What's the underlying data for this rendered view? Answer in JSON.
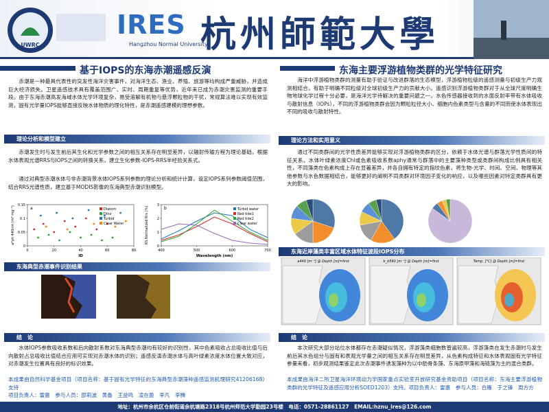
{
  "header": {
    "logo_text": "UWRC",
    "ires": "IRES",
    "ires_sub": "Hangzhou Normal University",
    "university": "杭州師範大學"
  },
  "left": {
    "title": "基于IOPS的东海赤潮遥感反演",
    "intro": "赤潮是一种最具代表性的突发性海洋灾害事件，对海洋生态、渔业、养殖、旅游等均构成严重威胁，并造成巨大经济损失。卫星遥感技术具有覆盖范围广、实时、周期重复等优势，近年来已成为赤潮灾害监测的重要手段。由于东海赤潮高发海域水体光学环境复杂，易受溶解有机物与悬浮颗粒物的干扰，常规算法难以实现有效监测，固有光学量IOPS能够直接反映水体物质的理化特性，是赤潮遥感建模的理想参数。",
    "theory_heading": "理论分析和模型建立",
    "theory_p1": "赤潮发生时与发生前后其生化和光学参数之间的相互关系存在明显差异，以辐射传输方程为理论基础，根据水体表观光谱RRS与IOPS之间的转换关系，建立生化参数-IOPS-RRS半经验关系式。",
    "theory_p2": "通过对典型赤潮水体与非赤潮背景水体IOPS系列参数的理论分析和统计计算，设定IOPS系列参数阈值范围，结合RRS光谱性质，建立基于MODIS影像的东海典型赤潮识别模型。",
    "plot_a": {
      "type": "scatter",
      "label": "a",
      "xlabel": "ID",
      "ylabel": "a*ph 440nm (m² mg⁻¹)",
      "xlim": [
        0,
        80
      ],
      "ylim": [
        0,
        0.15
      ],
      "xticks": [
        0,
        20,
        40,
        60,
        80
      ],
      "yticks": [
        0,
        0.05,
        0.1,
        0.15
      ],
      "series": [
        {
          "name": "Diatom",
          "color": "#d62728",
          "x": [
            5,
            12,
            20,
            28,
            36,
            44,
            52,
            60
          ],
          "y": [
            0.06,
            0.08,
            0.05,
            0.09,
            0.07,
            0.1,
            0.06,
            0.08
          ]
        },
        {
          "name": "Dino",
          "color": "#2ca02c",
          "x": [
            8,
            16,
            24,
            32,
            40,
            48,
            56,
            64
          ],
          "y": [
            0.03,
            0.04,
            0.02,
            0.05,
            0.03,
            0.04,
            0.02,
            0.03
          ]
        },
        {
          "name": "Turbid",
          "color": "#1f77b4",
          "x": [
            10,
            22,
            34,
            46,
            58,
            70
          ],
          "y": [
            0.11,
            0.12,
            0.1,
            0.13,
            0.11,
            0.12
          ]
        },
        {
          "name": "Clear Water",
          "color": "#ff7f0e",
          "x": [
            14,
            30,
            50,
            66,
            74
          ],
          "y": [
            0.07,
            0.06,
            0.08,
            0.07,
            0.09
          ]
        }
      ]
    },
    "plot_b": {
      "type": "line",
      "label": "b",
      "xlabel": "Wavelength (nm)",
      "ylabel": "RS Normalized Rrs (%)",
      "xlim": [
        400,
        700
      ],
      "ylim": [
        0,
        3
      ],
      "xticks": [
        400,
        500,
        600,
        700
      ],
      "yticks": [
        0,
        1,
        2,
        3
      ],
      "x": [
        400,
        450,
        500,
        550,
        600,
        650,
        700
      ],
      "series": [
        {
          "name": "Turbid water",
          "color": "#1f77b4",
          "values": [
            0.5,
            1.1,
            1.8,
            2.4,
            2.2,
            1.2,
            0.6
          ]
        },
        {
          "name": "Red tide1",
          "color": "#d62728",
          "values": [
            0.4,
            0.8,
            1.4,
            2.1,
            1.6,
            0.9,
            0.3
          ]
        },
        {
          "name": "Red tide2",
          "color": "#2ca02c",
          "values": [
            0.3,
            0.7,
            1.6,
            2.6,
            1.8,
            1.0,
            0.4
          ]
        },
        {
          "name": "Clear water",
          "color": "#9467bd",
          "values": [
            1.2,
            1.6,
            1.5,
            0.9,
            0.4,
            0.2,
            0.1
          ]
        }
      ]
    },
    "results_heading": "东海典型赤潮事件识别结果",
    "conclusion_heading": "结　论",
    "conclusion": "水体IOPS参数吸收系数和后向散射系数对东海典型赤潮均有较好的识别性，其中色素吸收占总吸收比值与后向散射占总吸收比值结合应用可实现对赤潮水体的识别；遥感反演赤潮水体与高叶绿素浓度水体位置大致对应，对赤潮发生位置具有良好的标识效果。",
    "funding": "本成果由自然科学基金项目（项目名称：基于固有光学特征的东海典型赤潮藻种遥感监测机理研究41206168）支持",
    "members": "项目负责人：雷惠　参与人员：邵莉波　黄备　王益鸣　凌在盈　李凡　李腾"
  },
  "right": {
    "title": "东海主要浮游植物类群的光学特征研究",
    "intro": "海洋中浮游植物类群的测量有助于验证与改进群落的生态模型，浮游植物粒级的遥感测量与初级生产力观测相结合，有助于明确不同粒级对全球初级生产力的贡献大小。遥感识别浮游植物类群对于从全球尺度明确生物地球化学过程十分必要，是海洋光学待解决的重要问题之一。水色传感器接收到的水面反射率带有水体吸收与散射信息（IOPs），不同的浮游植物类群会因为颗粒粒径大小、细胞内色素类型与含量的不同而使水体表现出不同的吸收与散射特性。",
    "methods_heading": "理论方法和实用意义",
    "methods": "通过不同类群间的光学性质差异能够实现对浮游植物类群的区分，依赖于水体光谱与群落光学性质间的特征关系。水体叶绿素浓度Chl或色素吸收系数aphy通常与群落中的主要藻种类型或类群间构成比例具有相关性，不同藻类在色素构成上存在显著差异，并各自拥有特定的指纹色素，将生物-光学、时间、空间、物理等其他参数与水色数据相结合，能够更好的阐明不同类群对环境因子变化的响应，以及哪些因素对特定类群具有更大的影响。",
    "pies": [
      {
        "type": "pie",
        "values": [
          30,
          20,
          15,
          12,
          10,
          8,
          5
        ],
        "colors": [
          "#4e79a7",
          "#f28e2b",
          "#9c9c9c",
          "#edc948",
          "#5b8fd6",
          "#59a14f",
          "#2b4a7a"
        ]
      },
      {
        "type": "pie",
        "values": [
          40,
          18,
          14,
          10,
          8,
          6,
          4
        ],
        "colors": [
          "#4e79a7",
          "#f28e2b",
          "#9c9c9c",
          "#edc948",
          "#5b8fd6",
          "#59a14f",
          "#2b4a7a"
        ]
      },
      {
        "type": "pie",
        "values": [
          85,
          5,
          4,
          3,
          3
        ],
        "colors": [
          "#c9b8d9",
          "#4e79a7",
          "#f28e2b",
          "#edc948",
          "#59a14f"
        ]
      }
    ],
    "maps_heading": "东海近岸藻类丰富区域水体特征波段IOPS分布",
    "map_titles": [
      "a440 [m⁻¹] @ Depth [m]=first",
      "b_b590 [m⁻¹] @ Depth [m]=first",
      "Temp. [°C] @ Depth [m]=first"
    ],
    "conclusion_heading": "结　论",
    "conclusion": "本次研究大部分站位水体都存在赤潮疑似情况，浮游藻类细胞数普遍较高，浮游藻类在发生赤潮时与发生前后其水色组分与固有和表观光学量之间的相互关系存在明显差异，从色素构成特征和水体表观固有光学特征参量来看，初步观测结果鉴定此次赤潮事件诱发藻种为以中肋骨条藻、东海原甲藻和海链藻为主的混合类群。",
    "funding": "本成果由海洋二所卫星海洋环境动力学国家重点实验室开放研究基金资助项目（项目名称：东海主要浮游植物类群的光学特征及遥感应用分析SOED1203）支持。项目负责人：雷惠　参与人员：白雁　于之锋　周方方"
  },
  "footer": "地址：杭州市余杭区仓前街道余杭塘路2318号杭州师范大学勤园23号楼　电话：0571-28861127　EMAIL:hznu_ires@126.com"
}
